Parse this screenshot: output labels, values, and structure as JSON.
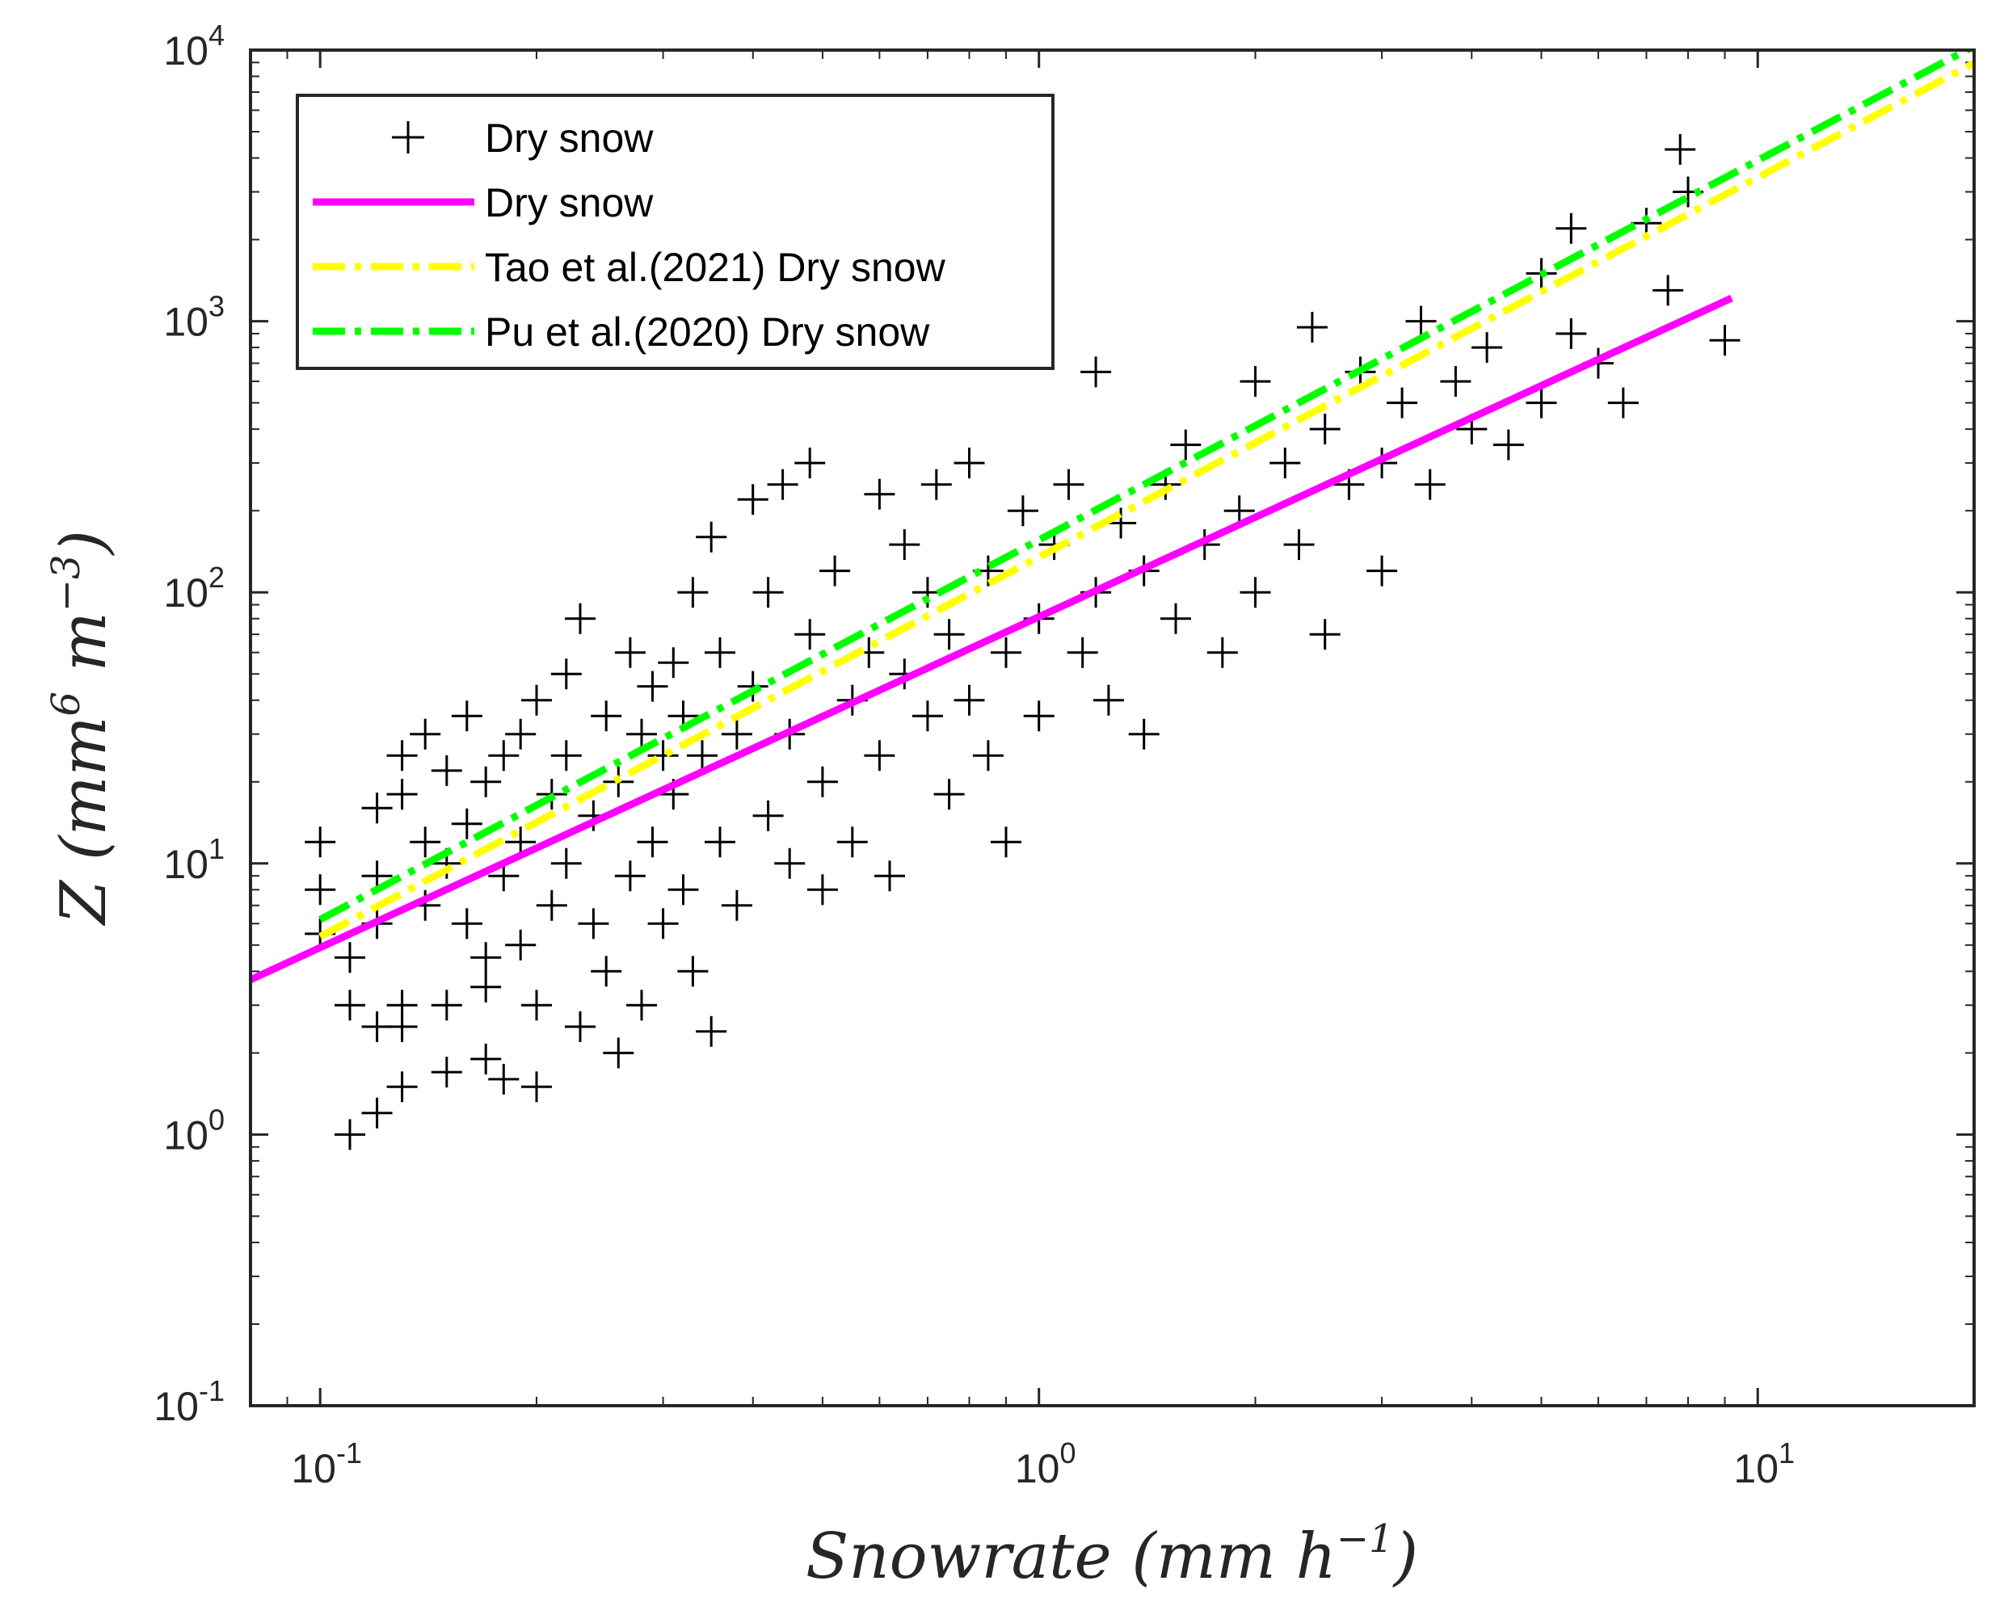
{
  "chart_data": {
    "type": "scatter",
    "title": "",
    "xlabel": "Snowrate (mm h⁻¹)",
    "xlabel_parts": {
      "main": "Snowrate (mm h",
      "sup": "−1",
      "close": ")"
    },
    "ylabel": "Z (mm⁶ m⁻³)",
    "ylabel_parts": {
      "a": "Z (mm",
      "sup1": "6",
      "b": " m",
      "sup2": "−3",
      "close": ")"
    },
    "xscale": "log",
    "yscale": "log",
    "xlim": [
      0.08,
      20
    ],
    "ylim": [
      0.1,
      10000
    ],
    "x_ticks": [
      {
        "value": 0.1,
        "base": "10",
        "exp": "-1"
      },
      {
        "value": 1,
        "base": "10",
        "exp": "0"
      },
      {
        "value": 10,
        "base": "10",
        "exp": "1"
      }
    ],
    "y_ticks": [
      {
        "value": 0.1,
        "base": "10",
        "exp": "-1"
      },
      {
        "value": 1,
        "base": "10",
        "exp": "0"
      },
      {
        "value": 10,
        "base": "10",
        "exp": "1"
      },
      {
        "value": 100,
        "base": "10",
        "exp": "2"
      },
      {
        "value": 1000,
        "base": "10",
        "exp": "3"
      },
      {
        "value": 10000,
        "base": "10",
        "exp": "4"
      }
    ],
    "grid": false,
    "legend_position": "top-left",
    "series": [
      {
        "name": "Dry snow",
        "kind": "scatter",
        "marker": "+",
        "color": "#000000",
        "points": [
          [
            0.1,
            12
          ],
          [
            0.1,
            8
          ],
          [
            0.1,
            5.5
          ],
          [
            0.11,
            3
          ],
          [
            0.11,
            1
          ],
          [
            0.11,
            4.5
          ],
          [
            0.12,
            1.2
          ],
          [
            0.12,
            2.5
          ],
          [
            0.12,
            6
          ],
          [
            0.12,
            9
          ],
          [
            0.12,
            16
          ],
          [
            0.13,
            25
          ],
          [
            0.13,
            18
          ],
          [
            0.13,
            3
          ],
          [
            0.13,
            2.5
          ],
          [
            0.13,
            1.5
          ],
          [
            0.14,
            12
          ],
          [
            0.14,
            7
          ],
          [
            0.14,
            30
          ],
          [
            0.15,
            22
          ],
          [
            0.15,
            10
          ],
          [
            0.15,
            3
          ],
          [
            0.15,
            1.7
          ],
          [
            0.16,
            6
          ],
          [
            0.16,
            14
          ],
          [
            0.16,
            35
          ],
          [
            0.17,
            20
          ],
          [
            0.17,
            3.5
          ],
          [
            0.17,
            1.9
          ],
          [
            0.17,
            4.5
          ],
          [
            0.18,
            1.6
          ],
          [
            0.18,
            9
          ],
          [
            0.18,
            25
          ],
          [
            0.19,
            30
          ],
          [
            0.19,
            12
          ],
          [
            0.19,
            5
          ],
          [
            0.2,
            3
          ],
          [
            0.2,
            40
          ],
          [
            0.2,
            1.5
          ],
          [
            0.21,
            18
          ],
          [
            0.21,
            7
          ],
          [
            0.22,
            10
          ],
          [
            0.22,
            50
          ],
          [
            0.22,
            25
          ],
          [
            0.23,
            2.5
          ],
          [
            0.23,
            80
          ],
          [
            0.24,
            15
          ],
          [
            0.24,
            6
          ],
          [
            0.25,
            35
          ],
          [
            0.25,
            4
          ],
          [
            0.26,
            20
          ],
          [
            0.26,
            2
          ],
          [
            0.27,
            60
          ],
          [
            0.27,
            9
          ],
          [
            0.28,
            30
          ],
          [
            0.28,
            3
          ],
          [
            0.29,
            45
          ],
          [
            0.29,
            12
          ],
          [
            0.3,
            25
          ],
          [
            0.3,
            6
          ],
          [
            0.31,
            55
          ],
          [
            0.31,
            18
          ],
          [
            0.32,
            8
          ],
          [
            0.32,
            35
          ],
          [
            0.33,
            4
          ],
          [
            0.33,
            100
          ],
          [
            0.34,
            25
          ],
          [
            0.35,
            160
          ],
          [
            0.35,
            2.4
          ],
          [
            0.36,
            12
          ],
          [
            0.36,
            60
          ],
          [
            0.38,
            30
          ],
          [
            0.38,
            7
          ],
          [
            0.4,
            220
          ],
          [
            0.4,
            45
          ],
          [
            0.42,
            15
          ],
          [
            0.42,
            100
          ],
          [
            0.44,
            250
          ],
          [
            0.45,
            10
          ],
          [
            0.45,
            30
          ],
          [
            0.48,
            300
          ],
          [
            0.48,
            70
          ],
          [
            0.5,
            20
          ],
          [
            0.5,
            8
          ],
          [
            0.52,
            120
          ],
          [
            0.55,
            40
          ],
          [
            0.55,
            12
          ],
          [
            0.58,
            60
          ],
          [
            0.6,
            230
          ],
          [
            0.6,
            25
          ],
          [
            0.62,
            9
          ],
          [
            0.65,
            150
          ],
          [
            0.65,
            50
          ],
          [
            0.7,
            35
          ],
          [
            0.7,
            100
          ],
          [
            0.72,
            250
          ],
          [
            0.75,
            18
          ],
          [
            0.75,
            70
          ],
          [
            0.8,
            300
          ],
          [
            0.8,
            40
          ],
          [
            0.85,
            25
          ],
          [
            0.85,
            120
          ],
          [
            0.9,
            60
          ],
          [
            0.9,
            12
          ],
          [
            0.95,
            200
          ],
          [
            1.0,
            80
          ],
          [
            1.0,
            35
          ],
          [
            1.05,
            150
          ],
          [
            1.1,
            250
          ],
          [
            1.15,
            60
          ],
          [
            1.2,
            100
          ],
          [
            1.2,
            650
          ],
          [
            1.25,
            40
          ],
          [
            1.3,
            180
          ],
          [
            1.4,
            120
          ],
          [
            1.4,
            30
          ],
          [
            1.5,
            250
          ],
          [
            1.55,
            80
          ],
          [
            1.6,
            350
          ],
          [
            1.7,
            150
          ],
          [
            1.8,
            60
          ],
          [
            1.9,
            200
          ],
          [
            2.0,
            600
          ],
          [
            2.0,
            100
          ],
          [
            2.2,
            300
          ],
          [
            2.3,
            150
          ],
          [
            2.4,
            950
          ],
          [
            2.5,
            400
          ],
          [
            2.5,
            70
          ],
          [
            2.7,
            250
          ],
          [
            2.8,
            650
          ],
          [
            3.0,
            300
          ],
          [
            3.0,
            120
          ],
          [
            3.2,
            500
          ],
          [
            3.4,
            1000
          ],
          [
            3.5,
            250
          ],
          [
            3.8,
            600
          ],
          [
            4.0,
            400
          ],
          [
            4.2,
            800
          ],
          [
            4.5,
            350
          ],
          [
            5.0,
            1500
          ],
          [
            5.0,
            500
          ],
          [
            5.5,
            2200
          ],
          [
            5.5,
            900
          ],
          [
            6.0,
            700
          ],
          [
            6.5,
            500
          ],
          [
            7.0,
            2300
          ],
          [
            7.5,
            1300
          ],
          [
            7.8,
            4300
          ],
          [
            8.0,
            3000
          ],
          [
            9.0,
            850
          ]
        ]
      },
      {
        "name": "Dry snow",
        "kind": "line",
        "style": "solid",
        "color": "#ff00ff",
        "a": 81.2,
        "b": 1.22,
        "x_range": [
          0.08,
          9.2
        ]
      },
      {
        "name": "Tao et al.(2021) Dry snow",
        "kind": "line",
        "style": "dashdot",
        "color": "#ffff00",
        "a": 135,
        "b": 1.4,
        "x_range": [
          0.1,
          20
        ]
      },
      {
        "name": "Pu et al.(2020) Dry snow",
        "kind": "line",
        "style": "dashdot",
        "color": "#00ff00",
        "a": 156,
        "b": 1.4,
        "x_range": [
          0.1,
          20
        ]
      }
    ]
  }
}
